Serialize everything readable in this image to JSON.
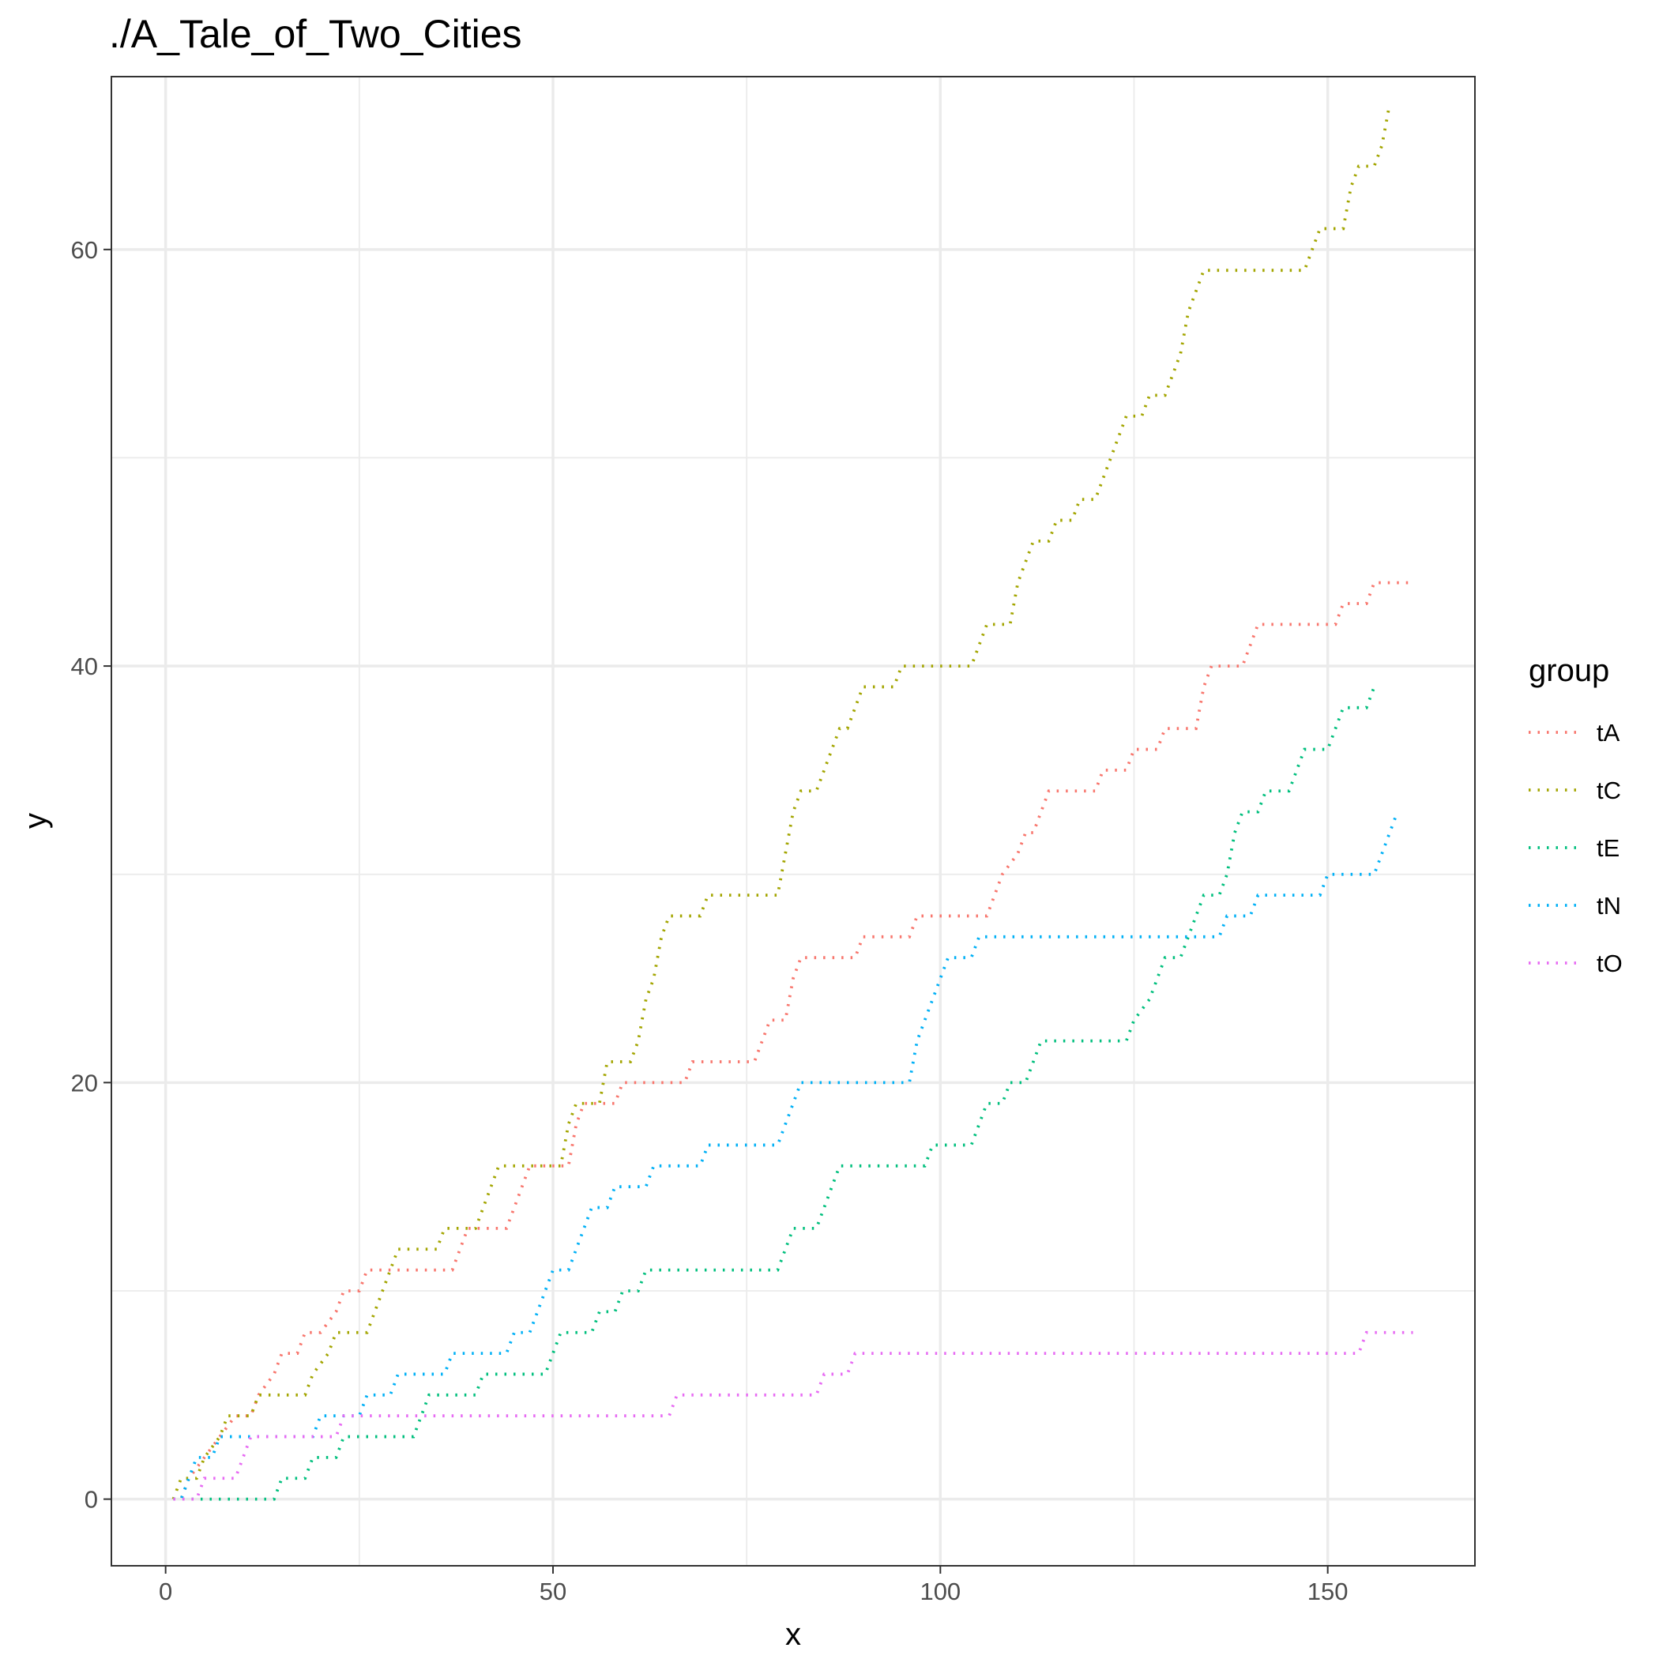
{
  "chart_data": {
    "type": "line",
    "title": "./A_Tale_of_Two_Cities",
    "xlabel": "x",
    "ylabel": "y",
    "xlim": [
      -7,
      169
    ],
    "ylim": [
      -3.2,
      68.3
    ],
    "x_ticks": [
      0,
      50,
      100,
      150
    ],
    "y_ticks": [
      0,
      20,
      40,
      60
    ],
    "x_tick_labels": [
      "0",
      "50",
      "100",
      "150"
    ],
    "y_tick_labels": [
      "0",
      "20",
      "40",
      "60"
    ],
    "grid": true,
    "legend_title": "group",
    "legend_position": "right",
    "line_style": "dotted",
    "series": [
      {
        "name": "tA",
        "color": "#F8766D",
        "points": [
          [
            1,
            0
          ],
          [
            2,
            0
          ],
          [
            3,
            1
          ],
          [
            5,
            2
          ],
          [
            7,
            3
          ],
          [
            9,
            4
          ],
          [
            11,
            4
          ],
          [
            12,
            5
          ],
          [
            14,
            6
          ],
          [
            15,
            7
          ],
          [
            17,
            7
          ],
          [
            18,
            8
          ],
          [
            20,
            8
          ],
          [
            22,
            9
          ],
          [
            23,
            10
          ],
          [
            25,
            10
          ],
          [
            26,
            11
          ],
          [
            37,
            11
          ],
          [
            38,
            12
          ],
          [
            39,
            13
          ],
          [
            44,
            13
          ],
          [
            45,
            14
          ],
          [
            46,
            15
          ],
          [
            47,
            16
          ],
          [
            52,
            16
          ],
          [
            53,
            18
          ],
          [
            54,
            19
          ],
          [
            58,
            19
          ],
          [
            59,
            20
          ],
          [
            67,
            20
          ],
          [
            68,
            21
          ],
          [
            76,
            21
          ],
          [
            77,
            22
          ],
          [
            78,
            23
          ],
          [
            80,
            23
          ],
          [
            81,
            25
          ],
          [
            82,
            26
          ],
          [
            89,
            26
          ],
          [
            90,
            27
          ],
          [
            96,
            27
          ],
          [
            97,
            28
          ],
          [
            106,
            28
          ],
          [
            107,
            29
          ],
          [
            108,
            30
          ],
          [
            110,
            31
          ],
          [
            111,
            32
          ],
          [
            112,
            32
          ],
          [
            113,
            33
          ],
          [
            114,
            34
          ],
          [
            120,
            34
          ],
          [
            121,
            35
          ],
          [
            124,
            35
          ],
          [
            125,
            36
          ],
          [
            128,
            36
          ],
          [
            129,
            37
          ],
          [
            133,
            37
          ],
          [
            134,
            39
          ],
          [
            135,
            40
          ],
          [
            139,
            40
          ],
          [
            140,
            41
          ],
          [
            141,
            42
          ],
          [
            151,
            42
          ],
          [
            152,
            43
          ],
          [
            155,
            43
          ],
          [
            156,
            44
          ],
          [
            161,
            44
          ]
        ]
      },
      {
        "name": "tC",
        "color": "#A3A500",
        "points": [
          [
            1,
            0
          ],
          [
            2,
            1
          ],
          [
            4,
            1
          ],
          [
            5,
            2
          ],
          [
            7,
            3
          ],
          [
            8,
            4
          ],
          [
            11,
            4
          ],
          [
            12,
            5
          ],
          [
            18,
            5
          ],
          [
            19,
            6
          ],
          [
            21,
            7
          ],
          [
            22,
            8
          ],
          [
            26,
            8
          ],
          [
            27,
            9
          ],
          [
            28,
            10
          ],
          [
            29,
            11
          ],
          [
            30,
            12
          ],
          [
            35,
            12
          ],
          [
            36,
            13
          ],
          [
            40,
            13
          ],
          [
            41,
            14
          ],
          [
            42,
            15
          ],
          [
            43,
            16
          ],
          [
            51,
            16
          ],
          [
            52,
            18
          ],
          [
            53,
            19
          ],
          [
            56,
            19
          ],
          [
            57,
            21
          ],
          [
            60,
            21
          ],
          [
            61,
            22
          ],
          [
            62,
            24
          ],
          [
            63,
            25
          ],
          [
            64,
            27
          ],
          [
            65,
            28
          ],
          [
            69,
            28
          ],
          [
            70,
            29
          ],
          [
            79,
            29
          ],
          [
            80,
            31
          ],
          [
            81,
            33
          ],
          [
            82,
            34
          ],
          [
            84,
            34
          ],
          [
            85,
            35
          ],
          [
            86,
            36
          ],
          [
            87,
            37
          ],
          [
            88,
            37
          ],
          [
            89,
            38
          ],
          [
            90,
            39
          ],
          [
            94,
            39
          ],
          [
            95,
            40
          ],
          [
            104,
            40
          ],
          [
            105,
            41
          ],
          [
            106,
            42
          ],
          [
            109,
            42
          ],
          [
            110,
            44
          ],
          [
            111,
            45
          ],
          [
            112,
            46
          ],
          [
            114,
            46
          ],
          [
            115,
            47
          ],
          [
            117,
            47
          ],
          [
            118,
            48
          ],
          [
            120,
            48
          ],
          [
            121,
            49
          ],
          [
            122,
            50
          ],
          [
            123,
            51
          ],
          [
            124,
            52
          ],
          [
            126,
            52
          ],
          [
            127,
            53
          ],
          [
            129,
            53
          ],
          [
            130,
            54
          ],
          [
            131,
            55
          ],
          [
            132,
            57
          ],
          [
            133,
            58
          ],
          [
            134,
            59
          ],
          [
            147,
            59
          ],
          [
            148,
            60
          ],
          [
            149,
            61
          ],
          [
            152,
            61
          ],
          [
            153,
            63
          ],
          [
            154,
            64
          ],
          [
            156,
            64
          ],
          [
            157,
            65
          ],
          [
            158,
            67
          ]
        ]
      },
      {
        "name": "tE",
        "color": "#00BF7D",
        "points": [
          [
            1,
            0
          ],
          [
            14,
            0
          ],
          [
            15,
            1
          ],
          [
            18,
            1
          ],
          [
            19,
            2
          ],
          [
            22,
            2
          ],
          [
            23,
            3
          ],
          [
            32,
            3
          ],
          [
            33,
            4
          ],
          [
            34,
            5
          ],
          [
            40,
            5
          ],
          [
            41,
            6
          ],
          [
            49,
            6
          ],
          [
            50,
            7
          ],
          [
            51,
            8
          ],
          [
            55,
            8
          ],
          [
            56,
            9
          ],
          [
            58,
            9
          ],
          [
            59,
            10
          ],
          [
            61,
            10
          ],
          [
            62,
            11
          ],
          [
            79,
            11
          ],
          [
            80,
            12
          ],
          [
            81,
            13
          ],
          [
            84,
            13
          ],
          [
            85,
            14
          ],
          [
            86,
            15
          ],
          [
            87,
            16
          ],
          [
            98,
            16
          ],
          [
            99,
            17
          ],
          [
            104,
            17
          ],
          [
            105,
            18
          ],
          [
            106,
            19
          ],
          [
            108,
            19
          ],
          [
            109,
            20
          ],
          [
            111,
            20
          ],
          [
            112,
            21
          ],
          [
            113,
            22
          ],
          [
            124,
            22
          ],
          [
            125,
            23
          ],
          [
            127,
            24
          ],
          [
            128,
            25
          ],
          [
            129,
            26
          ],
          [
            131,
            26
          ],
          [
            132,
            27
          ],
          [
            133,
            28
          ],
          [
            134,
            29
          ],
          [
            136,
            29
          ],
          [
            137,
            30
          ],
          [
            138,
            32
          ],
          [
            139,
            33
          ],
          [
            141,
            33
          ],
          [
            142,
            34
          ],
          [
            145,
            34
          ],
          [
            146,
            35
          ],
          [
            147,
            36
          ],
          [
            150,
            36
          ],
          [
            151,
            37
          ],
          [
            152,
            38
          ],
          [
            155,
            38
          ],
          [
            156,
            39
          ]
        ]
      },
      {
        "name": "tN",
        "color": "#00B0F6",
        "points": [
          [
            1,
            0
          ],
          [
            2,
            0
          ],
          [
            3,
            1
          ],
          [
            4,
            2
          ],
          [
            6,
            2
          ],
          [
            7,
            3
          ],
          [
            19,
            3
          ],
          [
            20,
            4
          ],
          [
            25,
            4
          ],
          [
            26,
            5
          ],
          [
            29,
            5
          ],
          [
            30,
            6
          ],
          [
            36,
            6
          ],
          [
            37,
            7
          ],
          [
            44,
            7
          ],
          [
            45,
            8
          ],
          [
            47,
            8
          ],
          [
            48,
            9
          ],
          [
            49,
            10
          ],
          [
            50,
            11
          ],
          [
            52,
            11
          ],
          [
            53,
            12
          ],
          [
            54,
            13
          ],
          [
            55,
            14
          ],
          [
            57,
            14
          ],
          [
            58,
            15
          ],
          [
            62,
            15
          ],
          [
            63,
            16
          ],
          [
            69,
            16
          ],
          [
            70,
            17
          ],
          [
            79,
            17
          ],
          [
            80,
            18
          ],
          [
            81,
            19
          ],
          [
            82,
            20
          ],
          [
            96,
            20
          ],
          [
            97,
            22
          ],
          [
            98,
            23
          ],
          [
            99,
            24
          ],
          [
            100,
            25
          ],
          [
            101,
            26
          ],
          [
            104,
            26
          ],
          [
            105,
            27
          ],
          [
            136,
            27
          ],
          [
            137,
            28
          ],
          [
            140,
            28
          ],
          [
            141,
            29
          ],
          [
            149,
            29
          ],
          [
            150,
            30
          ],
          [
            156,
            30
          ],
          [
            157,
            31
          ],
          [
            158,
            32
          ],
          [
            159,
            33
          ]
        ]
      },
      {
        "name": "tO",
        "color": "#E76BF3",
        "points": [
          [
            1,
            0
          ],
          [
            4,
            0
          ],
          [
            5,
            1
          ],
          [
            9,
            1
          ],
          [
            10,
            2
          ],
          [
            11,
            3
          ],
          [
            22,
            3
          ],
          [
            23,
            4
          ],
          [
            65,
            4
          ],
          [
            66,
            5
          ],
          [
            84,
            5
          ],
          [
            85,
            6
          ],
          [
            88,
            6
          ],
          [
            89,
            7
          ],
          [
            154,
            7
          ],
          [
            155,
            8
          ],
          [
            161,
            8
          ]
        ]
      }
    ]
  }
}
